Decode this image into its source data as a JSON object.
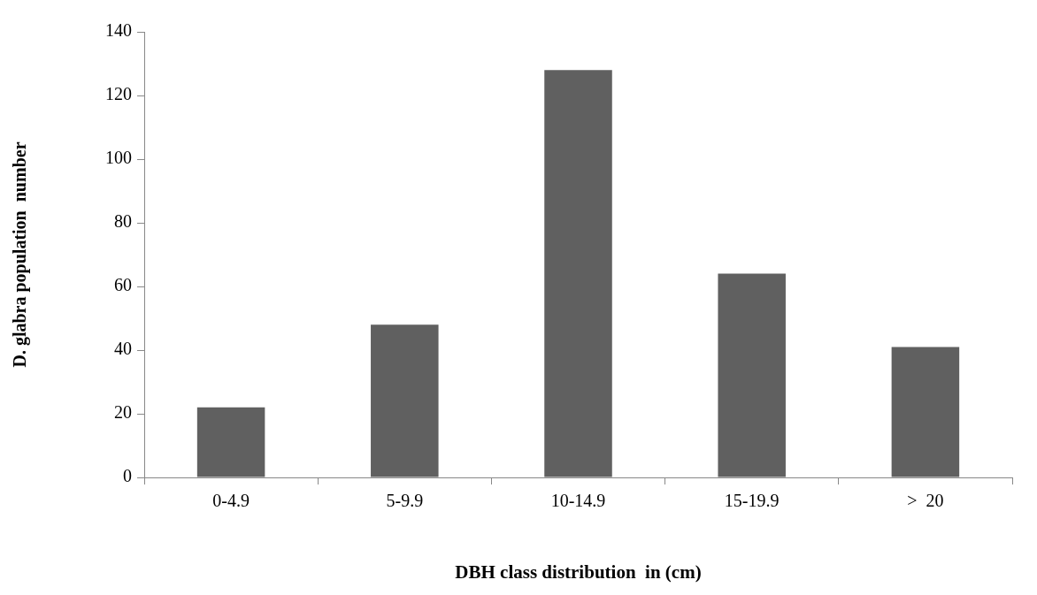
{
  "chart_data": {
    "type": "bar",
    "xlabel": "DBH class distribution  in (cm)",
    "ylabel": "D. glabra population  number",
    "categories": [
      "0-4.9",
      "5-9.9",
      "10-14.9",
      "15-19.9",
      ">  20"
    ],
    "values": [
      22,
      48,
      128,
      64,
      41
    ],
    "color": "#606060",
    "ylim": [
      0,
      140
    ],
    "yticks": [
      0,
      20,
      40,
      60,
      80,
      100,
      120,
      140
    ],
    "grid": false,
    "legend": false
  }
}
